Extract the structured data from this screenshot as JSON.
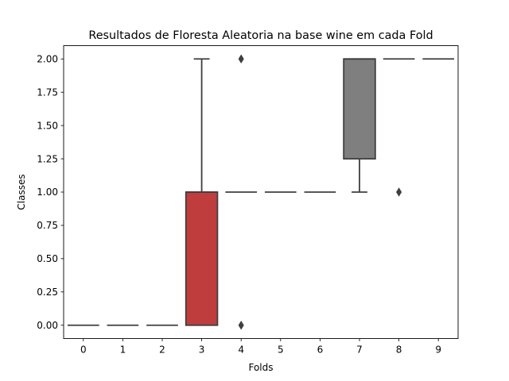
{
  "chart_data": {
    "type": "box",
    "title": "Resultados de Floresta Aleatoria na base wine em cada Fold",
    "xlabel": "Folds",
    "ylabel": "Classes",
    "ylim": [
      -0.1,
      2.1
    ],
    "yticks": [
      "0.00",
      "0.25",
      "0.50",
      "0.75",
      "1.00",
      "1.25",
      "1.50",
      "1.75",
      "2.00"
    ],
    "ytick_values": [
      0,
      0.25,
      0.5,
      0.75,
      1.0,
      1.25,
      1.5,
      1.75,
      2.0
    ],
    "categories": [
      "0",
      "1",
      "2",
      "3",
      "4",
      "5",
      "6",
      "7",
      "8",
      "9"
    ],
    "grid": false,
    "boxes": [
      {
        "fold": "0",
        "q1": 0,
        "median": 0,
        "q3": 0,
        "whisker_low": 0,
        "whisker_high": 0,
        "outliers": [],
        "color": "#3274a1"
      },
      {
        "fold": "1",
        "q1": 0,
        "median": 0,
        "q3": 0,
        "whisker_low": 0,
        "whisker_high": 0,
        "outliers": [],
        "color": "#e1812c"
      },
      {
        "fold": "2",
        "q1": 0,
        "median": 0,
        "q3": 0,
        "whisker_low": 0,
        "whisker_high": 0,
        "outliers": [],
        "color": "#3a923a"
      },
      {
        "fold": "3",
        "q1": 0,
        "median": 1,
        "q3": 1,
        "whisker_low": 0,
        "whisker_high": 2,
        "outliers": [],
        "color": "#c03d3e"
      },
      {
        "fold": "4",
        "q1": 1,
        "median": 1,
        "q3": 1,
        "whisker_low": 1,
        "whisker_high": 1,
        "outliers": [
          0,
          2
        ],
        "color": "#9372b2"
      },
      {
        "fold": "5",
        "q1": 1,
        "median": 1,
        "q3": 1,
        "whisker_low": 1,
        "whisker_high": 1,
        "outliers": [],
        "color": "#845b53"
      },
      {
        "fold": "6",
        "q1": 1,
        "median": 1,
        "q3": 1,
        "whisker_low": 1,
        "whisker_high": 1,
        "outliers": [],
        "color": "#d684bd"
      },
      {
        "fold": "7",
        "q1": 1.25,
        "median": 2,
        "q3": 2,
        "whisker_low": 1,
        "whisker_high": 2,
        "outliers": [],
        "color": "#7f7f7f"
      },
      {
        "fold": "8",
        "q1": 2,
        "median": 2,
        "q3": 2,
        "whisker_low": 2,
        "whisker_high": 2,
        "outliers": [
          1
        ],
        "color": "#a9aa35"
      },
      {
        "fold": "9",
        "q1": 2,
        "median": 2,
        "q3": 2,
        "whisker_low": 2,
        "whisker_high": 2,
        "outliers": [],
        "color": "#2eb0c0"
      }
    ],
    "line_color": "#3f3f3f"
  }
}
